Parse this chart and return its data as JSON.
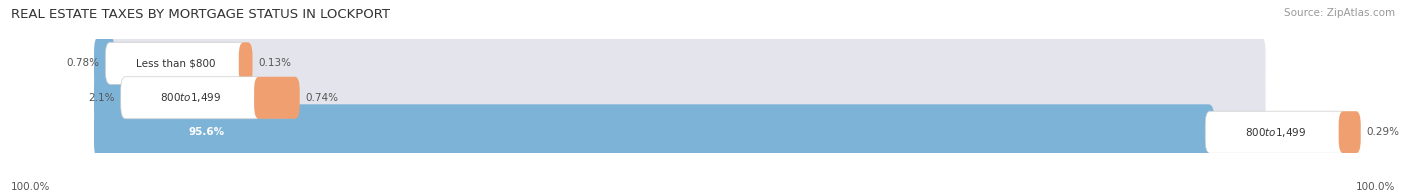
{
  "title": "REAL ESTATE TAXES BY MORTGAGE STATUS IN LOCKPORT",
  "source": "Source: ZipAtlas.com",
  "rows": [
    {
      "label": "Less than $800",
      "without_pct": 0.78,
      "with_pct": 0.13,
      "without_label": "0.78%",
      "with_label": "0.13%"
    },
    {
      "label": "$800 to $1,499",
      "without_pct": 2.1,
      "with_pct": 0.74,
      "without_label": "2.1%",
      "with_label": "0.74%"
    },
    {
      "label": "$800 to $1,499",
      "without_pct": 95.6,
      "with_pct": 0.29,
      "without_label": "95.6%",
      "with_label": "0.29%"
    }
  ],
  "left_label": "100.0%",
  "right_label": "100.0%",
  "color_without": "#7eb3d8",
  "color_with": "#f0a070",
  "color_bg_bar": "#e4e4ec",
  "bar_height": 0.62,
  "title_fontsize": 9.5,
  "source_fontsize": 7.5,
  "label_fontsize": 7.5,
  "pct_fontsize": 7.5,
  "legend_fontsize": 8,
  "xlim_max": 105,
  "scale": 100
}
